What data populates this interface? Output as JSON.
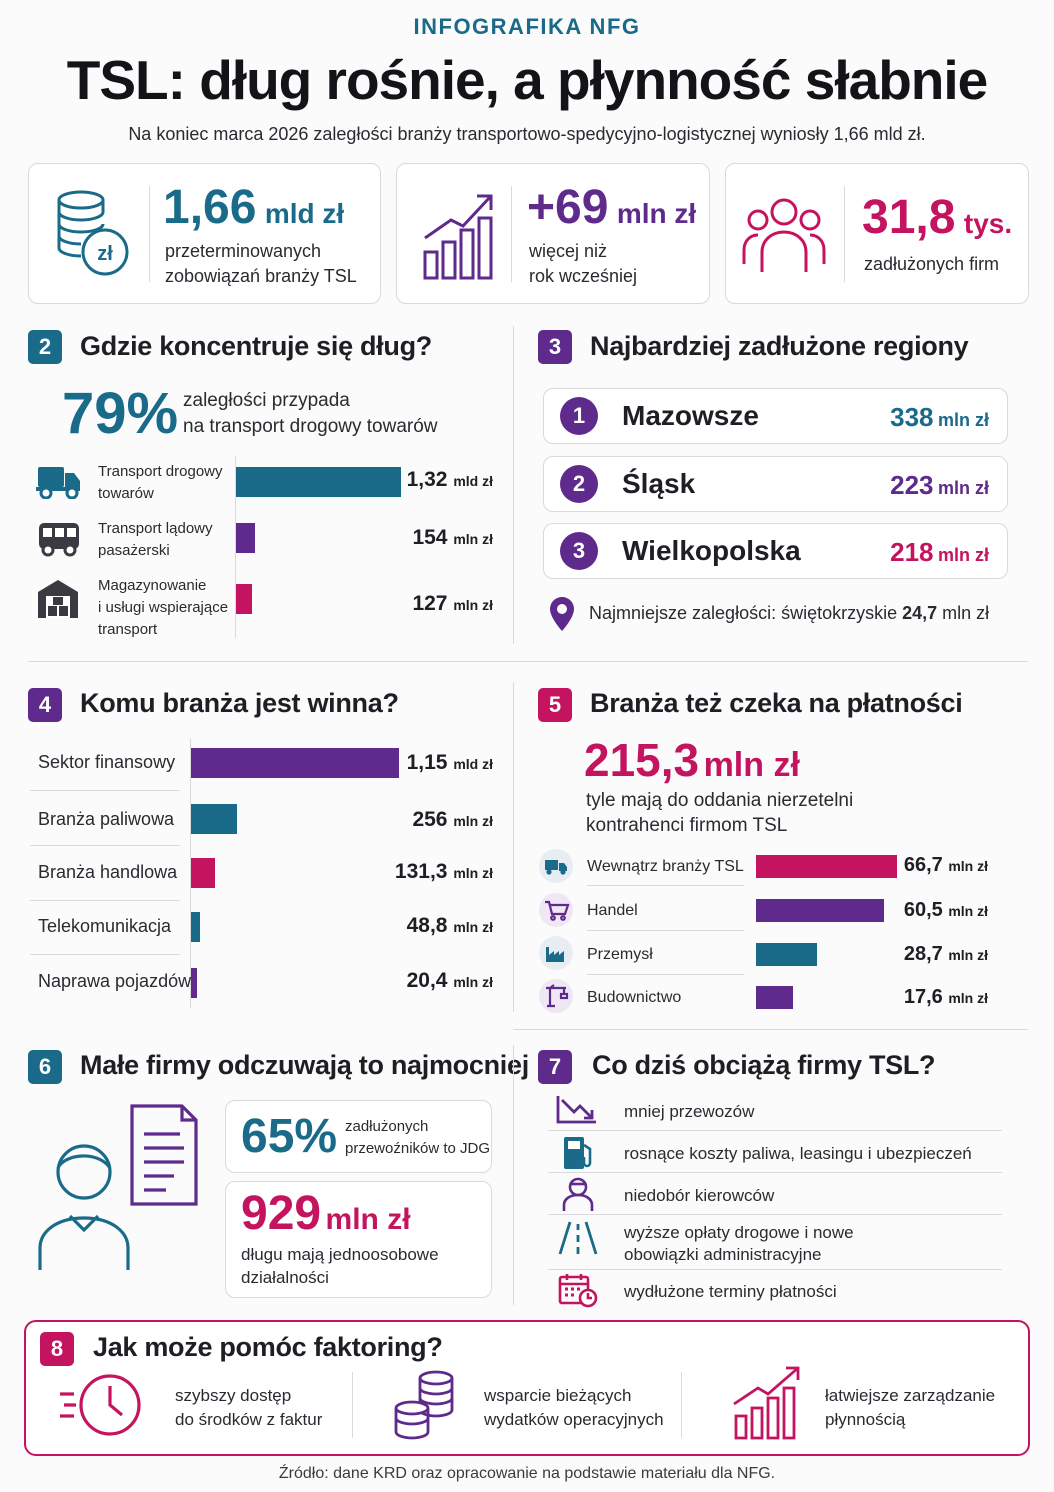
{
  "header": {
    "kicker": "INFOGRAFIKA NFG",
    "title": "TSL: dług rośnie, a płynność słabnie",
    "subtitle": "Na koniec marca 2026 zaległości branży transportowo-spedycyjno-logistycznej wyniosły 1,66 mld zł."
  },
  "kpis": [
    {
      "icon": "coins-zl-icon",
      "value": "1,66",
      "unit": "mld zł",
      "desc1": "przeterminowanych",
      "desc2": "zobowiązań branży TSL",
      "color": "#1a6a8a"
    },
    {
      "icon": "growth-chart-icon",
      "value": "+69",
      "unit": "mln zł",
      "desc1": "więcej niż",
      "desc2": "rok wcześniej",
      "color": "#5e2a8c"
    },
    {
      "icon": "people-icon",
      "value": "31,8",
      "unit": "tys.",
      "desc1": "zadłużonych firm",
      "desc2": "",
      "color": "#c4135f"
    }
  ],
  "section2": {
    "num": "2",
    "title": "Gdzie koncentruje się dług?",
    "big": "79%",
    "big_desc1": "zaległości przypada",
    "big_desc2": "na transport drogowy towarów",
    "rows": [
      {
        "icon": "truck-icon",
        "label1": "Transport drogowy",
        "label2": "towarów",
        "label3": "",
        "num": "1,32",
        "unit": "mld zł",
        "value_mln": 1320,
        "color": "#1a6a8a"
      },
      {
        "icon": "bus-icon",
        "label1": "Transport lądowy",
        "label2": "pasażerski",
        "label3": "",
        "num": "154",
        "unit": "mln zł",
        "value_mln": 154,
        "color": "#5e2a8c"
      },
      {
        "icon": "warehouse-icon",
        "label1": "Magazynowanie",
        "label2": "i usługi wspierające",
        "label3": "transport",
        "num": "127",
        "unit": "mln zł",
        "value_mln": 127,
        "color": "#c4135f"
      }
    ]
  },
  "section3": {
    "num": "3",
    "title": "Najbardziej zadłużone regiony",
    "regions": [
      {
        "rank": "1",
        "name": "Mazowsze",
        "num": "338",
        "unit": "mln zł",
        "color": "#1a6a8a"
      },
      {
        "rank": "2",
        "name": "Śląsk",
        "num": "223",
        "unit": "mln zł",
        "color": "#5e2a8c"
      },
      {
        "rank": "3",
        "name": "Wielkopolska",
        "num": "218",
        "unit": "mln zł",
        "color": "#c4135f"
      }
    ],
    "note_prefix": "Najmniejsze zaległości: świętokrzyskie ",
    "note_value": "24,7",
    "note_unit": " mln zł"
  },
  "section4": {
    "num": "4",
    "title": "Komu branża jest winna?",
    "rows": [
      {
        "label": "Sektor finansowy",
        "num": "1,15",
        "unit": "mld zł",
        "value_mln": 1150,
        "color": "#5e2a8c"
      },
      {
        "label": "Branża paliwowa",
        "num": "256",
        "unit": "mln zł",
        "value_mln": 256,
        "color": "#1a6a8a"
      },
      {
        "label": "Branża handlowa",
        "num": "131,3",
        "unit": "mln zł",
        "value_mln": 131.3,
        "color": "#c4135f"
      },
      {
        "label": "Telekomunikacja",
        "num": "48,8",
        "unit": "mln zł",
        "value_mln": 48.8,
        "color": "#1a6a8a"
      },
      {
        "label": "Naprawa pojazdów",
        "num": "20,4",
        "unit": "mln zł",
        "value_mln": 20.4,
        "color": "#5e2a8c"
      }
    ]
  },
  "section5": {
    "num": "5",
    "title": "Branża też czeka na płatności",
    "big_num": "215,3",
    "big_unit": "mln zł",
    "desc1": "tyle mają do oddania nierzetelni",
    "desc2": "kontrahenci firmom TSL",
    "rows": [
      {
        "icon": "truck-icon",
        "label": "Wewnątrz branży TSL",
        "num": "66,7",
        "unit": "mln zł",
        "value_mln": 66.7,
        "color": "#c4135f"
      },
      {
        "icon": "cart-icon",
        "label": "Handel",
        "num": "60,5",
        "unit": "mln zł",
        "value_mln": 60.5,
        "color": "#5e2a8c"
      },
      {
        "icon": "factory-icon",
        "label": "Przemysł",
        "num": "28,7",
        "unit": "mln zł",
        "value_mln": 28.7,
        "color": "#1a6a8a"
      },
      {
        "icon": "crane-icon",
        "label": "Budownictwo",
        "num": "17,6",
        "unit": "mln zł",
        "value_mln": 17.6,
        "color": "#5e2a8c"
      }
    ]
  },
  "section6": {
    "num": "6",
    "title": "Małe firmy odczuwają to najmocniej",
    "stat1_value": "65%",
    "stat1_desc1": "zadłużonych",
    "stat1_desc2": "przewoźników to JDG",
    "stat2_num": "929",
    "stat2_unit": "mln zł",
    "stat2_desc1": "długu mają jednoosobowe",
    "stat2_desc2": "działalności"
  },
  "section7": {
    "num": "7",
    "title": "Co dziś obciążą firmy TSL?",
    "items": [
      {
        "icon": "decline-chart-icon",
        "text1": "mniej przewozów",
        "text2": ""
      },
      {
        "icon": "fuel-pump-icon",
        "text1": "rosnące koszty paliwa, leasingu i ubezpieczeń",
        "text2": ""
      },
      {
        "icon": "driver-icon",
        "text1": "niedobór kierowców",
        "text2": ""
      },
      {
        "icon": "road-icon",
        "text1": "wyższe opłaty drogowe i nowe",
        "text2": "obowiązki administracyjne"
      },
      {
        "icon": "calendar-clock-icon",
        "text1": "wydłużone terminy płatności",
        "text2": ""
      }
    ]
  },
  "section8": {
    "num": "8",
    "title": "Jak może pomóc faktoring?",
    "items": [
      {
        "icon": "fast-clock-icon",
        "text1": "szybszy dostęp",
        "text2": "do środków z faktur"
      },
      {
        "icon": "coin-stack-icon",
        "text1": "wsparcie bieżących",
        "text2": "wydatków operacyjnych"
      },
      {
        "icon": "growth-chart-icon",
        "text1": "łatwiejsze zarządzanie",
        "text2": "płynnością"
      }
    ]
  },
  "footer": {
    "source": "Źródło: dane KRD oraz opracowanie na podstawie materiału dla NFG."
  },
  "colors": {
    "teal": "#1a6a8a",
    "purple": "#5e2a8c",
    "pink": "#c4135f"
  }
}
